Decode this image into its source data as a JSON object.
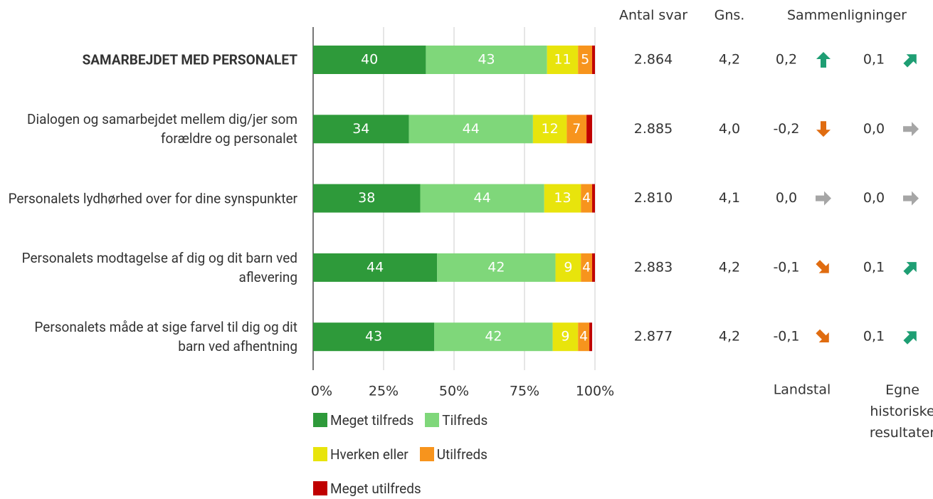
{
  "chart_data": {
    "type": "stacked_barh",
    "categories": [
      "SAMARBEJDET MED PERSONALET",
      "Dialogen og samarbejdet mellem dig/jer som forældre og personalet",
      "Personalets lydhørhed over for dine synspunkter",
      "Personalets modtagelse af dig og dit barn ved aflevering",
      "Personalets måde at sige farvel til dig og dit barn ved afhentning"
    ],
    "highlight": 0,
    "series": [
      {
        "name": "Meget tilfreds",
        "color": "#2e9a3a",
        "values": [
          40,
          34,
          38,
          44,
          43
        ]
      },
      {
        "name": "Tilfreds",
        "color": "#7fd77a",
        "values": [
          43,
          44,
          44,
          42,
          42
        ]
      },
      {
        "name": "Hverken eller",
        "color": "#e8e40c",
        "values": [
          11,
          12,
          13,
          9,
          9
        ]
      },
      {
        "name": "Utilfreds",
        "color": "#f7941d",
        "values": [
          5,
          7,
          4,
          4,
          4
        ]
      },
      {
        "name": "Meget utilfreds",
        "color": "#c00000",
        "values": [
          1,
          2,
          1,
          1,
          1
        ]
      }
    ],
    "xlim": [
      0,
      100
    ],
    "xticks": [
      {
        "value": 0,
        "label": "0%"
      },
      {
        "value": 25,
        "label": "25%"
      },
      {
        "value": 50,
        "label": "50%"
      },
      {
        "value": 75,
        "label": "75%"
      },
      {
        "value": 100,
        "label": "100%"
      }
    ],
    "grid": true,
    "columns": [
      {
        "header": "Antal svar",
        "values": [
          "2.864",
          "2.885",
          "2.810",
          "2.883",
          "2.877"
        ]
      },
      {
        "header": "Gns.",
        "values": [
          "4,2",
          "4,0",
          "4,1",
          "4,2",
          "4,2"
        ]
      }
    ],
    "comparisons": {
      "header": "Sammenligninger",
      "groups": [
        {
          "label": "Landstal",
          "values": [
            0.2,
            -0.2,
            0,
            -0.1,
            -0.1
          ],
          "value_labels": [
            "0,2",
            "-0,2",
            "0,0",
            "-0,1",
            "-0,1"
          ]
        },
        {
          "label": "Egne historiske resultater",
          "values": [
            0.1,
            0,
            0,
            0.1,
            0.1
          ],
          "value_labels": [
            "0,1",
            "0,0",
            "0,0",
            "0,1",
            "0,1"
          ]
        }
      ],
      "colors": {
        "positive": "#1e9e73",
        "negative": "#e06c10",
        "neutral": "#a6a6a6"
      }
    }
  }
}
